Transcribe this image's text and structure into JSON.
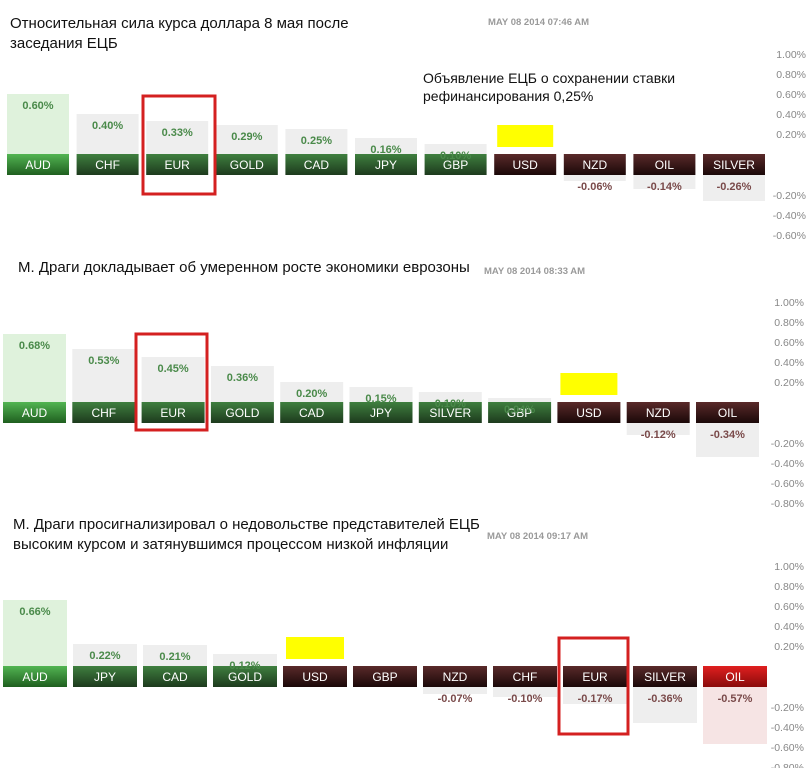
{
  "panels": [
    {
      "title_lines": [
        "Относительная сила курса доллара 8 мая после",
        "заседания ЕЦБ"
      ],
      "timestamp": "MAY 08 2014 07:46 AM",
      "note_lines": [
        "Объявление ЕЦБ о сохранении ставки",
        "рефинансирования 0,25%"
      ]
    },
    {
      "title_lines": [
        "М. Драги докладывает об умеренном росте экономики еврозоны"
      ],
      "timestamp": "MAY 08 2014 08:33 AM",
      "note_lines": []
    },
    {
      "title_lines": [
        "М. Драги просигнализировал о недовольстве представителей ЕЦБ",
        "высоким курсом и затянувшимся процессом низкой инфляции"
      ],
      "timestamp": "MAY 08 2014 09:17 AM",
      "note_lines": []
    }
  ],
  "colors": {
    "positive_bar": "#2e7d2e",
    "negative_bar": "#3a1818",
    "negative_strong_bar": "#b81414",
    "positive_label": "#4a8a4a",
    "negative_label": "#7a4a4a",
    "highlight_box": "#d42020",
    "usd_marker": "#ffff00"
  },
  "chart_data": [
    {
      "type": "bar",
      "categories": [
        "AUD",
        "CHF",
        "EUR",
        "GOLD",
        "CAD",
        "JPY",
        "GBP",
        "USD",
        "NZD",
        "OIL",
        "SILVER"
      ],
      "values": [
        0.6,
        0.4,
        0.33,
        0.29,
        0.25,
        0.16,
        0.1,
        0,
        -0.06,
        -0.14,
        -0.26
      ],
      "value_labels": [
        "0.60%",
        "0.40%",
        "0.33%",
        "0.29%",
        "0.25%",
        "0.16%",
        "0.10%",
        "",
        "-0.06%",
        "-0.14%",
        "-0.26%"
      ],
      "ylim": [
        -0.6,
        1.0
      ],
      "ytick_labels": [
        "1.00%",
        "0.80%",
        "0.60%",
        "0.40%",
        "0.20%",
        "-0.20%",
        "-0.40%",
        "-0.60%"
      ],
      "ytick_values": [
        1.0,
        0.8,
        0.6,
        0.4,
        0.2,
        -0.2,
        -0.4,
        -0.6
      ],
      "highlighted": "EUR",
      "reference": "USD"
    },
    {
      "type": "bar",
      "categories": [
        "AUD",
        "CHF",
        "EUR",
        "GOLD",
        "CAD",
        "JPY",
        "SILVER",
        "GBP",
        "USD",
        "NZD",
        "OIL"
      ],
      "values": [
        0.68,
        0.53,
        0.45,
        0.36,
        0.2,
        0.15,
        0.1,
        0.04,
        0,
        -0.12,
        -0.34
      ],
      "value_labels": [
        "0.68%",
        "0.53%",
        "0.45%",
        "0.36%",
        "0.20%",
        "0.15%",
        "0.10%",
        "0.04%",
        "",
        "-0.12%",
        "-0.34%"
      ],
      "ylim": [
        -0.8,
        1.0
      ],
      "ytick_labels": [
        "1.00%",
        "0.80%",
        "0.60%",
        "0.40%",
        "0.20%",
        "-0.20%",
        "-0.40%",
        "-0.60%",
        "-0.80%"
      ],
      "ytick_values": [
        1.0,
        0.8,
        0.6,
        0.4,
        0.2,
        -0.2,
        -0.4,
        -0.6,
        -0.8
      ],
      "highlighted": "EUR",
      "reference": "USD"
    },
    {
      "type": "bar",
      "categories": [
        "AUD",
        "JPY",
        "CAD",
        "GOLD",
        "USD",
        "GBP",
        "NZD",
        "CHF",
        "EUR",
        "SILVER",
        "OIL"
      ],
      "values": [
        0.66,
        0.22,
        0.21,
        0.12,
        0,
        0,
        -0.07,
        -0.1,
        -0.17,
        -0.36,
        -0.57
      ],
      "value_labels": [
        "0.66%",
        "0.22%",
        "0.21%",
        "0.12%",
        "",
        "",
        "-0.07%",
        "-0.10%",
        "-0.17%",
        "-0.36%",
        "-0.57%"
      ],
      "ylim": [
        -0.8,
        1.0
      ],
      "ytick_labels": [
        "1.00%",
        "0.80%",
        "0.60%",
        "0.40%",
        "0.20%",
        "-0.20%",
        "-0.40%",
        "-0.60%",
        "-0.80%"
      ],
      "ytick_values": [
        1.0,
        0.8,
        0.6,
        0.4,
        0.2,
        -0.2,
        -0.4,
        -0.6,
        -0.8
      ],
      "highlighted": "EUR",
      "reference": "USD"
    }
  ]
}
